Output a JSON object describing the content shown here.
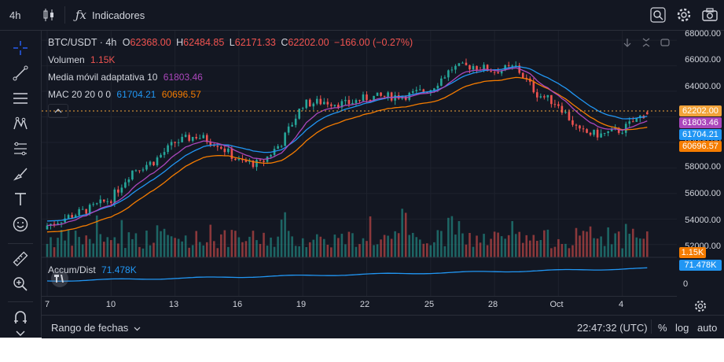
{
  "topbar": {
    "interval": "4h",
    "indicators_label": "Indicadores"
  },
  "legend": {
    "symbol": "BTC/USDT · 4h",
    "open_label": "O",
    "open": "62368.00",
    "high_label": "H",
    "high": "62484.85",
    "low_label": "L",
    "low": "62171.33",
    "close_label": "C",
    "close": "62202.00",
    "change": "−166.00 (−0.27%)",
    "volume_label": "Volumen",
    "volume": "1.15K",
    "ama_label": "Media móvil adaptativa 10",
    "ama": "61803.46",
    "mac_label": "MAC 20 20 0 0",
    "mac_upper": "61704.21",
    "mac_lower": "60696.57",
    "accum_label": "Accum/Dist",
    "accum": "71.478K"
  },
  "price_labels": {
    "close": "62202.00",
    "ama": "61803.46",
    "mac_upper": "61704.21",
    "mac_lower": "60696.57",
    "volume": "1.15K",
    "accum": "71.478K"
  },
  "price_scale": [
    "68000.00",
    "66000.00",
    "64000.00",
    "62000.00",
    "60000.00",
    "58000.00",
    "56000.00",
    "54000.00",
    "52000.00"
  ],
  "accum_scale": [
    "0"
  ],
  "time_scale": [
    "7",
    "10",
    "13",
    "16",
    "19",
    "22",
    "25",
    "28",
    "Oct",
    "4"
  ],
  "bottombar": {
    "date_range_label": "Rango de fechas",
    "clock": "22:47:32 (UTC)",
    "percent": "%",
    "log": "log",
    "auto": "auto"
  },
  "colors": {
    "background": "#131722",
    "up": "#26a69a",
    "down": "#ef5350",
    "ama": "#ab47bc",
    "mac_upper": "#2196f3",
    "mac_lower": "#f57c00",
    "close_label": "#f2a33a"
  },
  "chart_data": {
    "type": "candlestick",
    "symbol": "BTC/USDT",
    "interval": "4h",
    "ylim": [
      51000,
      68500
    ],
    "x_ticks": [
      "7",
      "10",
      "13",
      "16",
      "19",
      "22",
      "25",
      "28",
      "Oct",
      "4"
    ],
    "close_keyframes": [
      {
        "day": 7,
        "close": 53500
      },
      {
        "day": 8,
        "close": 54200
      },
      {
        "day": 9,
        "close": 54800
      },
      {
        "day": 10,
        "close": 55600
      },
      {
        "day": 11,
        "close": 57800
      },
      {
        "day": 12,
        "close": 58500
      },
      {
        "day": 13,
        "close": 60000
      },
      {
        "day": 14,
        "close": 60500
      },
      {
        "day": 15,
        "close": 59900
      },
      {
        "day": 16,
        "close": 58500
      },
      {
        "day": 17,
        "close": 58300
      },
      {
        "day": 18,
        "close": 60000
      },
      {
        "day": 19,
        "close": 63000
      },
      {
        "day": 20,
        "close": 63200
      },
      {
        "day": 21,
        "close": 63000
      },
      {
        "day": 22,
        "close": 63500
      },
      {
        "day": 23,
        "close": 63600
      },
      {
        "day": 24,
        "close": 63700
      },
      {
        "day": 25,
        "close": 64200
      },
      {
        "day": 26,
        "close": 65800
      },
      {
        "day": 27,
        "close": 66000
      },
      {
        "day": 28,
        "close": 65600
      },
      {
        "day": 29,
        "close": 65900
      },
      {
        "day": 30,
        "close": 63800
      },
      {
        "day": 31,
        "close": 63000
      },
      {
        "day": 32,
        "close": 60800
      },
      {
        "day": 33,
        "close": 60600
      },
      {
        "day": 34,
        "close": 61000
      },
      {
        "day": 35,
        "close": 62200
      }
    ],
    "last": {
      "open": 62368.0,
      "high": 62484.85,
      "low": 62171.33,
      "close": 62202.0
    },
    "indicators": [
      {
        "name": "Media móvil adaptativa 10",
        "last": 61803.46
      },
      {
        "name": "MAC 20 20 0 0 upper",
        "last": 61704.21
      },
      {
        "name": "MAC 20 20 0 0 lower",
        "last": 60696.57
      },
      {
        "name": "Volumen",
        "last": "1.15K"
      },
      {
        "name": "Accum/Dist",
        "last": "71.478K"
      }
    ]
  }
}
